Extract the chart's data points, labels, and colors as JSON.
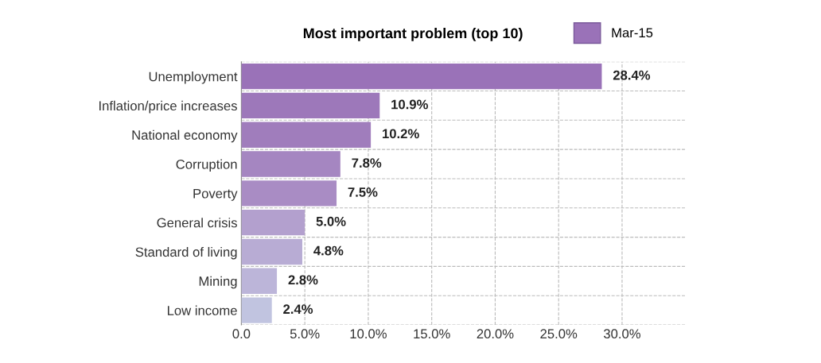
{
  "chart_data": {
    "type": "bar",
    "orientation": "horizontal",
    "title": "Most important problem (top 10)",
    "categories": [
      "Unemployment",
      "Inflation/price increases",
      "National economy",
      "Corruption",
      "Poverty",
      "General crisis",
      "Standard of living",
      "Mining",
      "Low income"
    ],
    "series": [
      {
        "name": "Mar-15",
        "color": "#9a72b8",
        "values": [
          28.4,
          10.9,
          10.2,
          7.8,
          7.5,
          5.0,
          4.8,
          2.8,
          2.4
        ],
        "colors": [
          "#9a72b8",
          "#9d78ba",
          "#a07dbc",
          "#a586c1",
          "#a98cc4",
          "#b3a0ce",
          "#b8acd4",
          "#bcb5d9",
          "#c1c4e0"
        ],
        "value_labels": [
          "28.4%",
          "10.9%",
          "10.2%",
          "7.8%",
          "7.5%",
          "5.0%",
          "4.8%",
          "2.8%",
          "2.4%"
        ]
      }
    ],
    "xlim": [
      0,
      35
    ],
    "xticks": [
      {
        "value": 0,
        "label": "0.0"
      },
      {
        "value": 5,
        "label": "5.0%"
      },
      {
        "value": 10,
        "label": "10.0%"
      },
      {
        "value": 15,
        "label": "15.0%"
      },
      {
        "value": 20,
        "label": "20.0%"
      },
      {
        "value": 25,
        "label": "25.0%"
      },
      {
        "value": 30,
        "label": "30.0%"
      }
    ],
    "grid": true,
    "legend": "top right"
  }
}
